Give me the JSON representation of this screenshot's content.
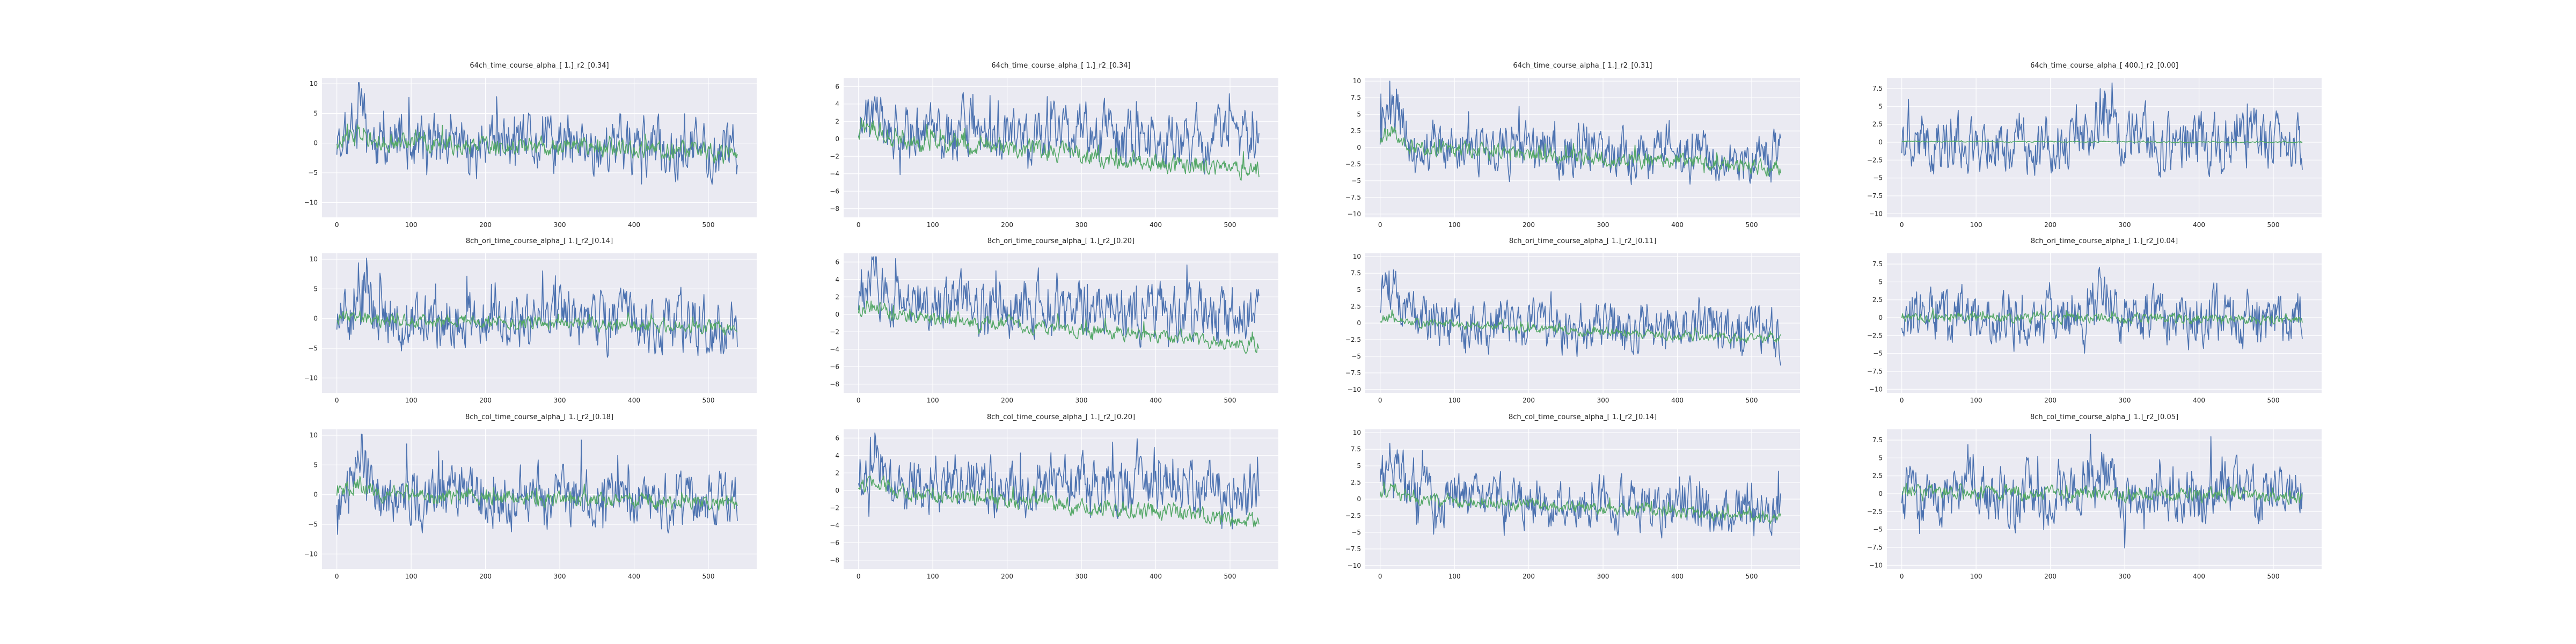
{
  "style": {
    "background": "#ffffff",
    "axes_face": "#eaeaf2",
    "grid_color": "#ffffff",
    "text_color": "#262626"
  },
  "chart_data": [
    {
      "type": "line",
      "title": "64ch_time_course_alpha_[ 1.]_r2_[0.34]",
      "xlim": [
        -20,
        565
      ],
      "ylim": [
        -12.5,
        11
      ],
      "x_ticks": [
        0,
        100,
        200,
        300,
        400,
        500
      ],
      "y_ticks": [
        -10,
        -5,
        0,
        5,
        10
      ],
      "grid": true,
      "series": [
        {
          "color": "#4c72b0",
          "n": 540,
          "center_start": 0,
          "center_end": -1,
          "amplitude": 4.2,
          "spike_at": 30,
          "spike_height": 8,
          "min_clip": -11.5,
          "max_clip": 10.2,
          "seed": 11
        },
        {
          "color": "#55a868",
          "n": 540,
          "center_start": 0.5,
          "center_end": -1.5,
          "amplitude": 1.3,
          "spike_at": 30,
          "spike_height": 2,
          "min_clip": -11.5,
          "max_clip": 10.2,
          "seed": 12
        }
      ]
    },
    {
      "type": "line",
      "title": "64ch_time_course_alpha_[ 1.]_r2_[0.34]",
      "xlim": [
        -20,
        565
      ],
      "ylim": [
        -9,
        7
      ],
      "x_ticks": [
        0,
        100,
        200,
        300,
        400,
        500
      ],
      "y_ticks": [
        -8,
        -6,
        -4,
        -2,
        0,
        2,
        4,
        6
      ],
      "grid": true,
      "series": [
        {
          "color": "#4c72b0",
          "n": 540,
          "center_start": 1,
          "center_end": 0,
          "amplitude": 2.8,
          "spike_at": 20,
          "spike_height": 4,
          "min_clip": -8.6,
          "max_clip": 6.6,
          "seed": 21
        },
        {
          "color": "#55a868",
          "n": 540,
          "center_start": 0.5,
          "center_end": -3.8,
          "amplitude": 0.9,
          "spike_at": 20,
          "spike_height": 1,
          "min_clip": -8.6,
          "max_clip": 6.6,
          "seed": 22
        }
      ]
    },
    {
      "type": "line",
      "title": "64ch_time_course_alpha_[ 1.]_r2_[0.31]",
      "xlim": [
        -20,
        565
      ],
      "ylim": [
        -10.5,
        10.5
      ],
      "x_ticks": [
        0,
        100,
        200,
        300,
        400,
        500
      ],
      "y_ticks": [
        -10,
        -7.5,
        -5,
        -2.5,
        0,
        2.5,
        5,
        7.5,
        10
      ],
      "grid": true,
      "series": [
        {
          "color": "#4c72b0",
          "n": 540,
          "center_start": 0.5,
          "center_end": -1.5,
          "amplitude": 3.2,
          "spike_at": 15,
          "spike_height": 8,
          "min_clip": -10,
          "max_clip": 10,
          "seed": 31
        },
        {
          "color": "#55a868",
          "n": 540,
          "center_start": 0.3,
          "center_end": -3,
          "amplitude": 1.0,
          "spike_at": 15,
          "spike_height": 2,
          "min_clip": -10,
          "max_clip": 10,
          "seed": 32
        }
      ]
    },
    {
      "type": "line",
      "title": "64ch_time_course_alpha_[ 400.]_r2_[0.00]",
      "xlim": [
        -20,
        565
      ],
      "ylim": [
        -10.5,
        9
      ],
      "x_ticks": [
        0,
        100,
        200,
        300,
        400,
        500
      ],
      "y_ticks": [
        -10,
        -7.5,
        -5,
        -2.5,
        0,
        2.5,
        5,
        7.5
      ],
      "grid": true,
      "series": [
        {
          "color": "#4c72b0",
          "n": 540,
          "center_start": 0,
          "center_end": 0,
          "amplitude": 3.4,
          "spike_at": 270,
          "spike_height": 4,
          "min_clip": -10,
          "max_clip": 8.3,
          "seed": 41
        },
        {
          "color": "#55a868",
          "n": 540,
          "center_start": 0.1,
          "center_end": 0,
          "amplitude": 0.08,
          "spike_at": 0,
          "spike_height": 0,
          "min_clip": -10,
          "max_clip": 8.3,
          "seed": 42
        }
      ]
    },
    {
      "type": "line",
      "title": "8ch_ori_time_course_alpha_[ 1.]_r2_[0.14]",
      "xlim": [
        -20,
        565
      ],
      "ylim": [
        -12.5,
        11
      ],
      "x_ticks": [
        0,
        100,
        200,
        300,
        400,
        500
      ],
      "y_ticks": [
        -10,
        -5,
        0,
        5,
        10
      ],
      "grid": true,
      "series": [
        {
          "color": "#4c72b0",
          "n": 540,
          "center_start": 0,
          "center_end": -1,
          "amplitude": 4.2,
          "spike_at": 30,
          "spike_height": 8,
          "min_clip": -11.5,
          "max_clip": 10.2,
          "seed": 51
        },
        {
          "color": "#55a868",
          "n": 540,
          "center_start": 0,
          "center_end": -1.5,
          "amplitude": 0.9,
          "spike_at": 30,
          "spike_height": 1,
          "min_clip": -11.5,
          "max_clip": 10.2,
          "seed": 52
        }
      ]
    },
    {
      "type": "line",
      "title": "8ch_ori_time_course_alpha_[ 1.]_r2_[0.20]",
      "xlim": [
        -20,
        565
      ],
      "ylim": [
        -9,
        7
      ],
      "x_ticks": [
        0,
        100,
        200,
        300,
        400,
        500
      ],
      "y_ticks": [
        -8,
        -6,
        -4,
        -2,
        0,
        2,
        4,
        6
      ],
      "grid": true,
      "series": [
        {
          "color": "#4c72b0",
          "n": 540,
          "center_start": 1,
          "center_end": 0,
          "amplitude": 2.8,
          "spike_at": 20,
          "spike_height": 4,
          "min_clip": -8.6,
          "max_clip": 6.6,
          "seed": 61
        },
        {
          "color": "#55a868",
          "n": 540,
          "center_start": 0.3,
          "center_end": -3.5,
          "amplitude": 0.7,
          "spike_at": 20,
          "spike_height": 1,
          "min_clip": -8.6,
          "max_clip": 6.6,
          "seed": 62
        }
      ]
    },
    {
      "type": "line",
      "title": "8ch_ori_time_course_alpha_[ 1.]_r2_[0.11]",
      "xlim": [
        -20,
        565
      ],
      "ylim": [
        -10.5,
        10.5
      ],
      "x_ticks": [
        0,
        100,
        200,
        300,
        400,
        500
      ],
      "y_ticks": [
        -10,
        -7.5,
        -5,
        -2.5,
        0,
        2.5,
        5,
        7.5,
        10
      ],
      "grid": true,
      "series": [
        {
          "color": "#4c72b0",
          "n": 540,
          "center_start": 0.5,
          "center_end": -1.5,
          "amplitude": 3.2,
          "spike_at": 15,
          "spike_height": 8,
          "min_clip": -10,
          "max_clip": 10,
          "seed": 71
        },
        {
          "color": "#55a868",
          "n": 540,
          "center_start": 0.2,
          "center_end": -2.5,
          "amplitude": 0.6,
          "spike_at": 15,
          "spike_height": 1,
          "min_clip": -10,
          "max_clip": 10,
          "seed": 72
        }
      ]
    },
    {
      "type": "line",
      "title": "8ch_ori_time_course_alpha_[ 1.]_r2_[0.04]",
      "xlim": [
        -20,
        565
      ],
      "ylim": [
        -10.5,
        9
      ],
      "x_ticks": [
        0,
        100,
        200,
        300,
        400,
        500
      ],
      "y_ticks": [
        -10,
        -7.5,
        -5,
        -2.5,
        0,
        2.5,
        5,
        7.5
      ],
      "grid": true,
      "series": [
        {
          "color": "#4c72b0",
          "n": 540,
          "center_start": 0,
          "center_end": 0,
          "amplitude": 3.4,
          "spike_at": 270,
          "spike_height": 4,
          "min_clip": -10,
          "max_clip": 8.3,
          "seed": 81
        },
        {
          "color": "#55a868",
          "n": 540,
          "center_start": 0.2,
          "center_end": -0.3,
          "amplitude": 0.6,
          "spike_at": 0,
          "spike_height": 0,
          "min_clip": -10,
          "max_clip": 8.3,
          "seed": 82
        }
      ]
    },
    {
      "type": "line",
      "title": "8ch_col_time_course_alpha_[ 1.]_r2_[0.18]",
      "xlim": [
        -20,
        565
      ],
      "ylim": [
        -12.5,
        11
      ],
      "x_ticks": [
        0,
        100,
        200,
        300,
        400,
        500
      ],
      "y_ticks": [
        -10,
        -5,
        0,
        5,
        10
      ],
      "grid": true,
      "series": [
        {
          "color": "#4c72b0",
          "n": 540,
          "center_start": 0,
          "center_end": -1,
          "amplitude": 4.2,
          "spike_at": 30,
          "spike_height": 8,
          "min_clip": -11.5,
          "max_clip": 10.2,
          "seed": 91
        },
        {
          "color": "#55a868",
          "n": 540,
          "center_start": 0.3,
          "center_end": -1.5,
          "amplitude": 1.1,
          "spike_at": 30,
          "spike_height": 1.5,
          "min_clip": -11.5,
          "max_clip": 10.2,
          "seed": 92
        }
      ]
    },
    {
      "type": "line",
      "title": "8ch_col_time_course_alpha_[ 1.]_r2_[0.20]",
      "xlim": [
        -20,
        565
      ],
      "ylim": [
        -9,
        7
      ],
      "x_ticks": [
        0,
        100,
        200,
        300,
        400,
        500
      ],
      "y_ticks": [
        -8,
        -6,
        -4,
        -2,
        0,
        2,
        4,
        6
      ],
      "grid": true,
      "series": [
        {
          "color": "#4c72b0",
          "n": 540,
          "center_start": 1,
          "center_end": 0,
          "amplitude": 2.8,
          "spike_at": 20,
          "spike_height": 4,
          "min_clip": -8.6,
          "max_clip": 6.6,
          "seed": 101
        },
        {
          "color": "#55a868",
          "n": 540,
          "center_start": 0.3,
          "center_end": -3.5,
          "amplitude": 0.8,
          "spike_at": 20,
          "spike_height": 1,
          "min_clip": -8.6,
          "max_clip": 6.6,
          "seed": 102
        }
      ]
    },
    {
      "type": "line",
      "title": "8ch_col_time_course_alpha_[ 1.]_r2_[0.14]",
      "xlim": [
        -20,
        565
      ],
      "ylim": [
        -10.5,
        10.5
      ],
      "x_ticks": [
        0,
        100,
        200,
        300,
        400,
        500
      ],
      "y_ticks": [
        -10,
        -7.5,
        -5,
        -2.5,
        0,
        2.5,
        5,
        7.5,
        10
      ],
      "grid": true,
      "series": [
        {
          "color": "#4c72b0",
          "n": 540,
          "center_start": 0.5,
          "center_end": -1.5,
          "amplitude": 3.2,
          "spike_at": 15,
          "spike_height": 8,
          "min_clip": -10,
          "max_clip": 10,
          "seed": 111
        },
        {
          "color": "#55a868",
          "n": 540,
          "center_start": 0.2,
          "center_end": -2.8,
          "amplitude": 0.8,
          "spike_at": 15,
          "spike_height": 1.5,
          "min_clip": -10,
          "max_clip": 10,
          "seed": 112
        }
      ]
    },
    {
      "type": "line",
      "title": "8ch_col_time_course_alpha_[ 1.]_r2_[0.05]",
      "xlim": [
        -20,
        565
      ],
      "ylim": [
        -10.5,
        9
      ],
      "x_ticks": [
        0,
        100,
        200,
        300,
        400,
        500
      ],
      "y_ticks": [
        -10,
        -7.5,
        -5,
        -2.5,
        0,
        2.5,
        5,
        7.5
      ],
      "grid": true,
      "series": [
        {
          "color": "#4c72b0",
          "n": 540,
          "center_start": 0,
          "center_end": 0,
          "amplitude": 3.4,
          "spike_at": 270,
          "spike_height": 4,
          "min_clip": -10,
          "max_clip": 8.3,
          "seed": 121
        },
        {
          "color": "#55a868",
          "n": 540,
          "center_start": 0.3,
          "center_end": -0.4,
          "amplitude": 0.8,
          "spike_at": 0,
          "spike_height": 0,
          "min_clip": -10,
          "max_clip": 8.3,
          "seed": 122
        }
      ]
    }
  ]
}
